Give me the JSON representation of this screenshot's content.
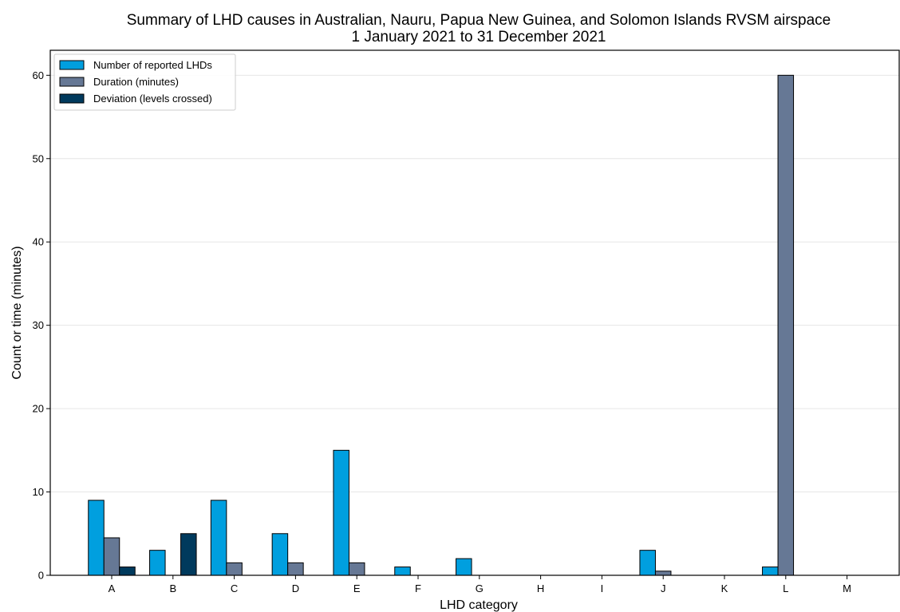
{
  "chart_data": {
    "type": "bar",
    "title": "Summary of LHD causes in Australian, Nauru, Papua New Guinea, and Solomon Islands RVSM airspace",
    "subtitle": "1 January 2021 to 31 December 2021",
    "xlabel": "LHD category",
    "ylabel": "Count or time (minutes)",
    "categories": [
      "A",
      "B",
      "C",
      "D",
      "E",
      "F",
      "G",
      "H",
      "I",
      "J",
      "K",
      "L",
      "M"
    ],
    "ylim": [
      0,
      63
    ],
    "yticks": [
      0,
      10,
      20,
      30,
      40,
      50,
      60
    ],
    "grid": "horizontal",
    "legend_position": "top-left",
    "series": [
      {
        "name": "Number of reported LHDs",
        "color": "#009fdf",
        "values": [
          9,
          3,
          9,
          5,
          15,
          1,
          2,
          0,
          0,
          3,
          0,
          1,
          0
        ]
      },
      {
        "name": "Duration (minutes)",
        "color": "#667895",
        "values": [
          4.5,
          0,
          1.5,
          1.5,
          1.5,
          0,
          0,
          0,
          0,
          0.5,
          0,
          60,
          0
        ]
      },
      {
        "name": "Deviation (levels crossed)",
        "color": "#003a5d",
        "values": [
          1,
          5,
          0,
          0,
          0,
          0,
          0,
          0,
          0,
          0,
          0,
          0,
          0
        ]
      }
    ]
  }
}
